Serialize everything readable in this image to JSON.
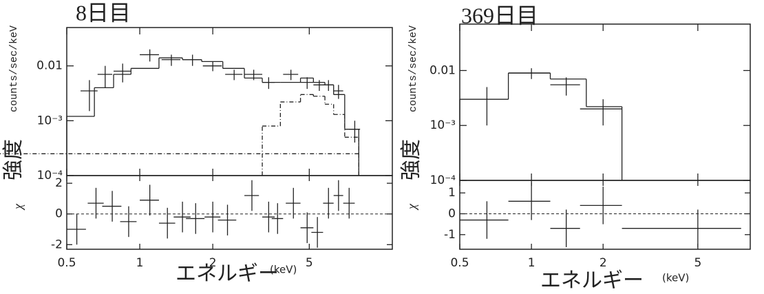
{
  "chart_data": [
    {
      "type": "spectrum",
      "title": "8日目",
      "ylabel": "counts/sec/keV",
      "ylabel2": "強度",
      "xlabel": "エネルギー",
      "xunit": "(keV)",
      "xlog": true,
      "ylog": true,
      "xlim": [
        0.5,
        11
      ],
      "xticks": [
        0.5,
        1,
        2,
        5
      ],
      "ylim": [
        0.0001,
        0.05
      ],
      "yticks": [
        0.01,
        {
          "value": 0.001,
          "label": "10⁻³"
        },
        {
          "value": 0.0001,
          "label": "10⁻⁴"
        }
      ],
      "data": {
        "x": [
          0.62,
          0.72,
          0.85,
          1.1,
          1.35,
          1.65,
          2.0,
          2.45,
          2.95,
          3.4,
          4.2,
          4.9,
          5.5,
          6.0,
          6.6,
          7.7
        ],
        "xerr": [
          0.05,
          0.05,
          0.07,
          0.1,
          0.12,
          0.15,
          0.18,
          0.2,
          0.25,
          0.2,
          0.3,
          0.3,
          0.3,
          0.3,
          0.3,
          0.4
        ],
        "values": [
          0.0035,
          0.007,
          0.008,
          0.016,
          0.013,
          0.013,
          0.01,
          0.007,
          0.007,
          0.005,
          0.007,
          0.005,
          0.0045,
          0.0045,
          0.0035,
          0.0007
        ],
        "yerr": [
          0.002,
          0.003,
          0.003,
          0.004,
          0.003,
          0.003,
          0.002,
          0.0015,
          0.0015,
          0.0012,
          0.0015,
          0.0012,
          0.001,
          0.001,
          0.001,
          0.0003
        ]
      },
      "models": [
        {
          "dash": "solid",
          "edges": [
            0.5,
            0.65,
            0.78,
            0.92,
            1.2,
            1.5,
            1.8,
            2.2,
            2.7,
            3.2,
            3.8,
            4.6,
            5.2,
            5.8,
            6.3,
            7.0,
            8.0
          ],
          "values": [
            0.0012,
            0.004,
            0.007,
            0.009,
            0.014,
            0.013,
            0.012,
            0.009,
            0.006,
            0.005,
            0.005,
            0.006,
            0.005,
            0.0045,
            0.003,
            0.0007
          ]
        },
        {
          "dash": "dashdot",
          "edges": [
            3.2,
            3.8,
            4.6,
            5.2,
            5.8,
            6.3,
            7.0,
            8.0
          ],
          "values": [
            0.0008,
            0.0022,
            0.003,
            0.0028,
            0.002,
            0.0013,
            0.0005,
            0.00025
          ]
        }
      ],
      "residual": {
        "ylabel": "χ",
        "ylim": [
          -2.3,
          2.5
        ],
        "yticks": [
          -2,
          0,
          2
        ],
        "x": [
          0.55,
          0.66,
          0.77,
          0.9,
          1.1,
          1.3,
          1.5,
          1.7,
          2.0,
          2.3,
          2.9,
          3.4,
          3.7,
          4.3,
          4.9,
          5.4,
          6.0,
          6.6,
          7.3
        ],
        "xerr": [
          0.05,
          0.05,
          0.07,
          0.07,
          0.1,
          0.1,
          0.12,
          0.15,
          0.15,
          0.2,
          0.2,
          0.2,
          0.2,
          0.3,
          0.3,
          0.3,
          0.3,
          0.3,
          0.4
        ],
        "values": [
          -1.0,
          0.7,
          0.5,
          -0.5,
          0.9,
          -0.6,
          -0.2,
          -0.3,
          -0.2,
          -0.4,
          1.2,
          -0.2,
          -0.3,
          0.7,
          -0.9,
          -1.2,
          0.7,
          1.2,
          0.7
        ],
        "yerr": [
          1,
          1,
          1,
          1,
          1,
          1,
          1,
          1,
          1,
          1,
          1,
          1,
          1,
          1,
          1,
          1,
          1,
          1,
          1
        ]
      }
    },
    {
      "type": "spectrum",
      "title": "369日目",
      "ylabel": "counts/sec/keV",
      "ylabel2": "強度",
      "xlabel": "エネルギー",
      "xunit": "(keV)",
      "xlog": true,
      "ylog": true,
      "xlim": [
        0.5,
        8.3
      ],
      "xticks": [
        0.5,
        1,
        2,
        5
      ],
      "ylim": [
        0.0001,
        0.07
      ],
      "yticks": [
        0.01,
        {
          "value": 0.001,
          "label": "10⁻³"
        },
        {
          "value": 0.0001,
          "label": "10⁻⁴"
        }
      ],
      "data": {
        "x": [
          0.65,
          1.0,
          1.4,
          2.0
        ],
        "xerr": [
          0.15,
          0.2,
          0.2,
          0.4
        ],
        "values": [
          0.003,
          0.009,
          0.0055,
          0.002
        ],
        "yerr": [
          0.002,
          0.002,
          0.002,
          0.001
        ]
      },
      "models": [
        {
          "dash": "solid",
          "edges": [
            0.5,
            0.8,
            1.2,
            1.7,
            2.4
          ],
          "values": [
            0.003,
            0.009,
            0.007,
            0.0022
          ]
        }
      ],
      "residual": {
        "ylabel": "χ",
        "ylim": [
          -1.7,
          1.6
        ],
        "yticks": [
          -1,
          0,
          1
        ],
        "x": [
          0.65,
          1.0,
          1.4,
          2.0,
          5.0
        ],
        "xerr": [
          0.15,
          0.2,
          0.2,
          0.4,
          2.6
        ],
        "values": [
          -0.3,
          0.6,
          -0.7,
          0.4,
          -0.7
        ],
        "yerr": [
          0.9,
          0.9,
          0.9,
          0.9,
          0.9
        ]
      }
    }
  ]
}
